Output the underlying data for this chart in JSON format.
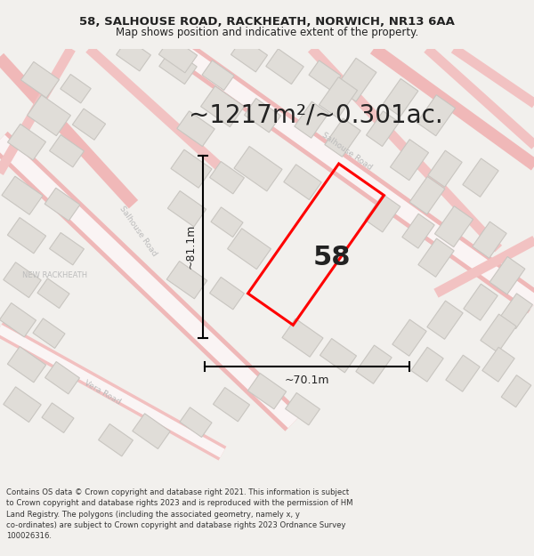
{
  "title_line1": "58, SALHOUSE ROAD, RACKHEATH, NORWICH, NR13 6AA",
  "title_line2": "Map shows position and indicative extent of the property.",
  "area_text": "~1217m²/~0.301ac.",
  "label_58": "58",
  "dim_height": "~81.1m",
  "dim_width": "~70.1m",
  "footer_text": "Contains OS data © Crown copyright and database right 2021. This information is subject to Crown copyright and database rights 2023 and is reproduced with the permission of HM Land Registry. The polygons (including the associated geometry, namely x, y co-ordinates) are subject to Crown copyright and database rights 2023 Ordnance Survey 100026316.",
  "bg_color": "#f2f0ed",
  "map_bg": "#f7f6f3",
  "road_outline": "#f0b8b8",
  "road_fill": "#f7f0f0",
  "building_fc": "#e0ddd8",
  "building_ec": "#c8c5c0",
  "property_ec": "#ff0000",
  "text_dark": "#222222",
  "text_gray": "#aaaaaa",
  "footer_bg": "#ffffff",
  "title_fontsize": 9.5,
  "subtitle_fontsize": 8.5,
  "area_fontsize": 20,
  "label_fontsize": 22,
  "dim_fontsize": 9
}
